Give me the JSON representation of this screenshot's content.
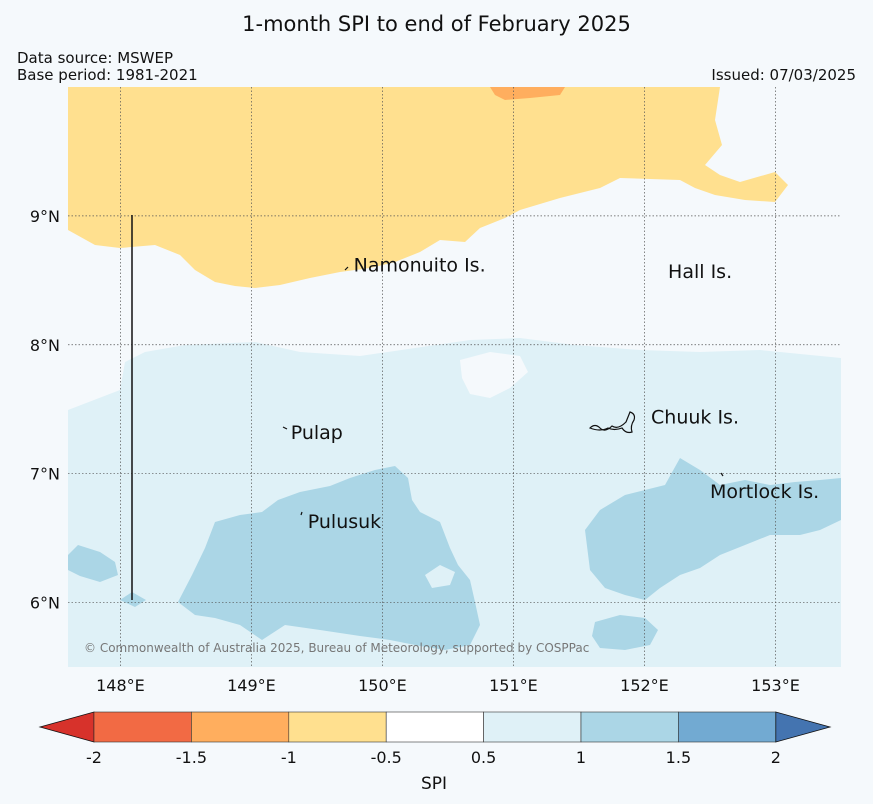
{
  "title": "1-month SPI to end of February 2025",
  "meta": {
    "data_source": "Data source: MSWEP",
    "base_period": "Base period: 1981-2021",
    "issued": "Issued: 07/03/2025"
  },
  "copyright": "© Commonwealth of Australia 2025, Bureau of Meteorology, supported by COSPPac",
  "map": {
    "lon_range": [
      147.6,
      153.5
    ],
    "lat_range": [
      5.5,
      10.0
    ],
    "lon_ticks": [
      {
        "value": 148,
        "label": "148°E"
      },
      {
        "value": 149,
        "label": "149°E"
      },
      {
        "value": 150,
        "label": "150°E"
      },
      {
        "value": 151,
        "label": "151°E"
      },
      {
        "value": 152,
        "label": "152°E"
      },
      {
        "value": 153,
        "label": "153°E"
      }
    ],
    "lat_ticks": [
      {
        "value": 9,
        "label": "9°N"
      },
      {
        "value": 8,
        "label": "8°N"
      },
      {
        "value": 7,
        "label": "7°N"
      },
      {
        "value": 6,
        "label": "6°N"
      }
    ],
    "place_labels": [
      {
        "name": "Namonuito Is.",
        "lon": 149.78,
        "lat": 8.57
      },
      {
        "name": "Hall Is.",
        "lon": 152.18,
        "lat": 8.52
      },
      {
        "name": "Pulap",
        "lon": 149.3,
        "lat": 7.27
      },
      {
        "name": "Chuuk Is.",
        "lon": 152.05,
        "lat": 7.39
      },
      {
        "name": "Pulusuk",
        "lon": 149.43,
        "lat": 6.58
      },
      {
        "name": "Mortlock Is.",
        "lon": 152.5,
        "lat": 6.81
      }
    ],
    "colors": {
      "dry_moderate": "#ffe08f",
      "dry_strong": "#ffae5e",
      "normal": "#f5f9fc",
      "wet_mild": "#dff1f7",
      "wet_moderate": "#abd6e6"
    }
  },
  "colorbar": {
    "label": "SPI",
    "ticks": [
      "-2",
      "-1.5",
      "-1",
      "-0.5",
      "0.5",
      "1",
      "1.5",
      "2"
    ],
    "bins": [
      "#f26a44",
      "#ffae5e",
      "#ffe08f",
      "#ffffff",
      "#dff1f7",
      "#abd6e6",
      "#72aad2"
    ],
    "under_color": "#d7322b",
    "over_color": "#4474b0"
  }
}
